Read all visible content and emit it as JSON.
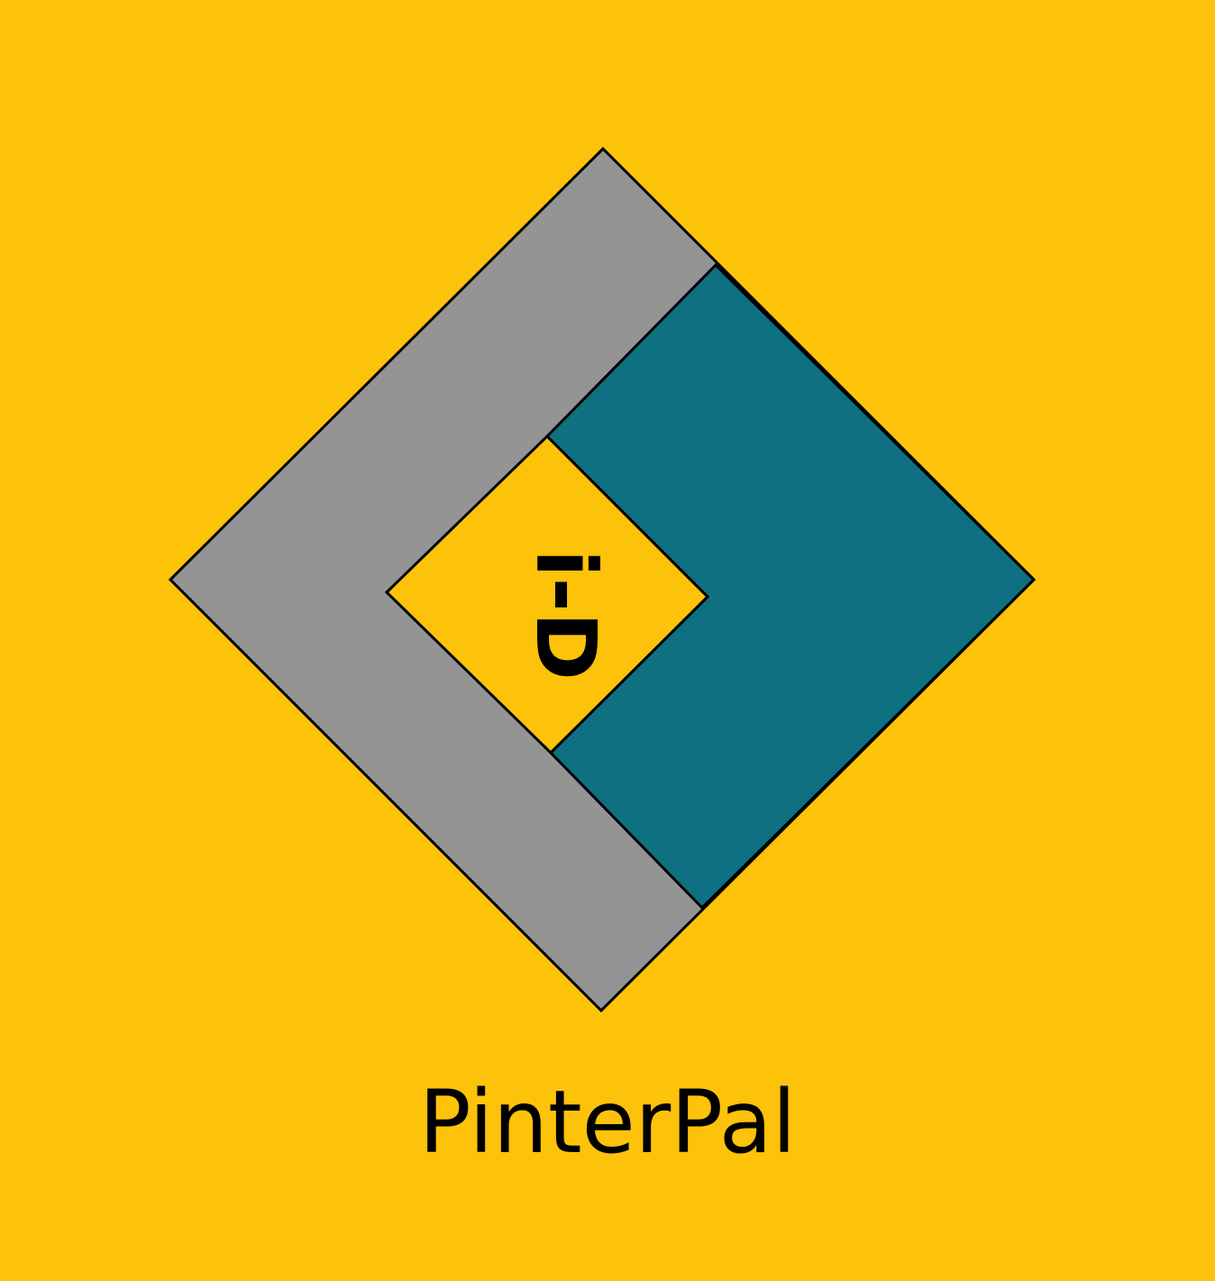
{
  "background_color": "#FDC20A",
  "logo": {
    "mark_text": "i-D",
    "colors": {
      "outer_frame": "#949494",
      "inner_block": "#0E7080",
      "center": "#FDC20A",
      "outline": "#000000"
    }
  },
  "brand": {
    "name": "PinterPal"
  }
}
